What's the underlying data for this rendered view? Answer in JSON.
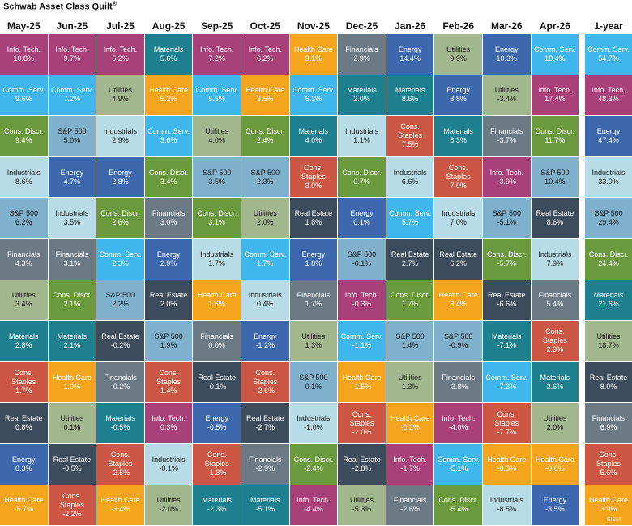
{
  "title": "Schwab Asset Class Quilt",
  "title_mark": "®",
  "watermark": "EISM",
  "colors": {
    "Info. Tech.": "#a8407a",
    "Comm. Serv.": "#3fb7ec",
    "Cons. Discr.": "#6a9a3d",
    "Industrials": "#b7dce8",
    "S&P 500": "#7fb0cc",
    "Financials": "#6c7a86",
    "Utilities": "#a3b78e",
    "Materials": "#1e7f8e",
    "Cons. Staples": "#cc5745",
    "Real Estate": "#3d4c5c",
    "Energy": "#3e68ad",
    "Health Care": "#f4a51d"
  },
  "chart_data": {
    "type": "table",
    "title": "Schwab Asset Class Quilt",
    "columns": [
      {
        "period": "May-25",
        "cells": [
          {
            "sector": "Info. Tech.",
            "value": "10.8%"
          },
          {
            "sector": "Comm. Serv.",
            "value": "9.6%"
          },
          {
            "sector": "Cons. Discr.",
            "value": "9.4%"
          },
          {
            "sector": "Industrials",
            "value": "8.6%"
          },
          {
            "sector": "S&P 500",
            "value": "6.2%"
          },
          {
            "sector": "Financials",
            "value": "4.3%"
          },
          {
            "sector": "Utilities",
            "value": "3.4%"
          },
          {
            "sector": "Materials",
            "value": "2.8%"
          },
          {
            "sector": "Cons. Staples",
            "value": "1.7%"
          },
          {
            "sector": "Real Estate",
            "value": "0.8%"
          },
          {
            "sector": "Energy",
            "value": "0.3%"
          },
          {
            "sector": "Health Care",
            "value": "-5.7%"
          }
        ]
      },
      {
        "period": "Jun-25",
        "cells": [
          {
            "sector": "Info. Tech.",
            "value": "9.7%"
          },
          {
            "sector": "Comm. Serv.",
            "value": "7.2%"
          },
          {
            "sector": "S&P 500",
            "value": "5.0%"
          },
          {
            "sector": "Energy",
            "value": "4.7%"
          },
          {
            "sector": "Industrials",
            "value": "3.5%"
          },
          {
            "sector": "Financials",
            "value": "3.1%"
          },
          {
            "sector": "Cons. Discr.",
            "value": "2.1%"
          },
          {
            "sector": "Materials",
            "value": "2.1%"
          },
          {
            "sector": "Health Care",
            "value": "1.9%"
          },
          {
            "sector": "Utilities",
            "value": "0.1%"
          },
          {
            "sector": "Real Estate",
            "value": "-0.5%"
          },
          {
            "sector": "Cons. Staples",
            "value": "-2.2%"
          }
        ]
      },
      {
        "period": "Jul-25",
        "cells": [
          {
            "sector": "Info. Tech.",
            "value": "5.2%"
          },
          {
            "sector": "Utilities",
            "value": "4.9%"
          },
          {
            "sector": "Industrials",
            "value": "2.9%"
          },
          {
            "sector": "Energy",
            "value": "2.8%"
          },
          {
            "sector": "Cons. Discr.",
            "value": "2.6%"
          },
          {
            "sector": "Comm. Serv.",
            "value": "2.3%"
          },
          {
            "sector": "S&P 500",
            "value": "2.2%"
          },
          {
            "sector": "Real Estate",
            "value": "-0.2%"
          },
          {
            "sector": "Financials",
            "value": "-0.2%"
          },
          {
            "sector": "Materials",
            "value": "-0.5%"
          },
          {
            "sector": "Cons. Staples",
            "value": "-2.5%"
          },
          {
            "sector": "Health Care",
            "value": "-3.4%"
          }
        ]
      },
      {
        "period": "Aug-25",
        "cells": [
          {
            "sector": "Materials",
            "value": "5.6%"
          },
          {
            "sector": "Health Care",
            "value": "5.2%"
          },
          {
            "sector": "Comm. Serv.",
            "value": "3.6%"
          },
          {
            "sector": "Cons. Discr.",
            "value": "3.4%"
          },
          {
            "sector": "Financials",
            "value": "3.0%"
          },
          {
            "sector": "Energy",
            "value": "2.9%"
          },
          {
            "sector": "Real Estate",
            "value": "2.0%"
          },
          {
            "sector": "S&P 500",
            "value": "1.9%"
          },
          {
            "sector": "Cons. Staples",
            "value": "1.4%"
          },
          {
            "sector": "Info. Tech.",
            "value": "0.3%"
          },
          {
            "sector": "Industrials",
            "value": "-0.1%"
          },
          {
            "sector": "Utilities",
            "value": "-2.0%"
          }
        ]
      },
      {
        "period": "Sep-25",
        "cells": [
          {
            "sector": "Info. Tech.",
            "value": "7.2%"
          },
          {
            "sector": "Comm. Serv.",
            "value": "5.5%"
          },
          {
            "sector": "Utilities",
            "value": "4.0%"
          },
          {
            "sector": "S&P 500",
            "value": "3.5%"
          },
          {
            "sector": "Cons. Discr.",
            "value": "3.1%"
          },
          {
            "sector": "Industrials",
            "value": "1.7%"
          },
          {
            "sector": "Health Care",
            "value": "1.6%"
          },
          {
            "sector": "Financials",
            "value": "0.0%"
          },
          {
            "sector": "Real Estate",
            "value": "-0.1%"
          },
          {
            "sector": "Energy",
            "value": "-0.5%"
          },
          {
            "sector": "Cons. Staples",
            "value": "-1.8%"
          },
          {
            "sector": "Materials",
            "value": "-2.3%"
          }
        ]
      },
      {
        "period": "Oct-25",
        "cells": [
          {
            "sector": "Info. Tech.",
            "value": "6.2%"
          },
          {
            "sector": "Health Care",
            "value": "3.5%"
          },
          {
            "sector": "Cons. Discr.",
            "value": "2.4%"
          },
          {
            "sector": "S&P 500",
            "value": "2.3%"
          },
          {
            "sector": "Utilities",
            "value": "2.0%"
          },
          {
            "sector": "Comm. Serv.",
            "value": "1.7%"
          },
          {
            "sector": "Industrials",
            "value": "0.4%"
          },
          {
            "sector": "Energy",
            "value": "-1.2%"
          },
          {
            "sector": "Cons. Staples",
            "value": "-2.6%"
          },
          {
            "sector": "Real Estate",
            "value": "-2.7%"
          },
          {
            "sector": "Financials",
            "value": "-2.9%"
          },
          {
            "sector": "Materials",
            "value": "-5.1%"
          }
        ]
      },
      {
        "period": "Nov-25",
        "cells": [
          {
            "sector": "Health Care",
            "value": "9.1%"
          },
          {
            "sector": "Comm. Serv.",
            "value": "6.3%"
          },
          {
            "sector": "Materials",
            "value": "4.0%"
          },
          {
            "sector": "Cons. Staples",
            "value": "3.9%"
          },
          {
            "sector": "Real Estate",
            "value": "1.8%"
          },
          {
            "sector": "Energy",
            "value": "1.8%"
          },
          {
            "sector": "Financials",
            "value": "1.7%"
          },
          {
            "sector": "Utilities",
            "value": "1.3%"
          },
          {
            "sector": "S&P 500",
            "value": "0.1%"
          },
          {
            "sector": "Industrials",
            "value": "-1.0%"
          },
          {
            "sector": "Cons. Discr.",
            "value": "-2.4%"
          },
          {
            "sector": "Info. Tech.",
            "value": "-4.4%"
          }
        ]
      },
      {
        "period": "Dec-25",
        "cells": [
          {
            "sector": "Financials",
            "value": "2.9%"
          },
          {
            "sector": "Materials",
            "value": "2.0%"
          },
          {
            "sector": "Industrials",
            "value": "1.1%"
          },
          {
            "sector": "Cons. Discr.",
            "value": "0.7%"
          },
          {
            "sector": "Energy",
            "value": "0.1%"
          },
          {
            "sector": "S&P 500",
            "value": "-0.1%"
          },
          {
            "sector": "Info. Tech.",
            "value": "-0.3%"
          },
          {
            "sector": "Comm. Serv.",
            "value": "-1.1%"
          },
          {
            "sector": "Health Care",
            "value": "-1.5%"
          },
          {
            "sector": "Cons. Staples",
            "value": "-2.0%"
          },
          {
            "sector": "Real Estate",
            "value": "-2.8%"
          },
          {
            "sector": "Utilities",
            "value": "-5.3%"
          }
        ]
      },
      {
        "period": "Jan-26",
        "cells": [
          {
            "sector": "Energy",
            "value": "14.4%"
          },
          {
            "sector": "Materials",
            "value": "8.6%"
          },
          {
            "sector": "Cons. Staples",
            "value": "7.5%"
          },
          {
            "sector": "Industrials",
            "value": "6.6%"
          },
          {
            "sector": "Comm. Serv.",
            "value": "5.7%"
          },
          {
            "sector": "Real Estate",
            "value": "2.7%"
          },
          {
            "sector": "Cons. Discr.",
            "value": "1.7%"
          },
          {
            "sector": "S&P 500",
            "value": "1.4%"
          },
          {
            "sector": "Utilities",
            "value": "1.3%"
          },
          {
            "sector": "Health Care",
            "value": "-0.2%"
          },
          {
            "sector": "Info. Tech.",
            "value": "-1.7%"
          },
          {
            "sector": "Financials",
            "value": "-2.6%"
          }
        ]
      },
      {
        "period": "Feb-26",
        "cells": [
          {
            "sector": "Utilities",
            "value": "9.9%"
          },
          {
            "sector": "Energy",
            "value": "8.8%"
          },
          {
            "sector": "Materials",
            "value": "8.3%"
          },
          {
            "sector": "Cons. Staples",
            "value": "7.9%"
          },
          {
            "sector": "Industrials",
            "value": "7.0%"
          },
          {
            "sector": "Real Estate",
            "value": "6.2%"
          },
          {
            "sector": "Health Care",
            "value": "3.4%"
          },
          {
            "sector": "S&P 500",
            "value": "-0.9%"
          },
          {
            "sector": "Financials",
            "value": "-3.8%"
          },
          {
            "sector": "Info. Tech.",
            "value": "-4.0%"
          },
          {
            "sector": "Comm. Serv.",
            "value": "-5.1%"
          },
          {
            "sector": "Cons. Discr.",
            "value": "-5.4%"
          }
        ]
      },
      {
        "period": "Mar-26",
        "cells": [
          {
            "sector": "Energy",
            "value": "10.3%"
          },
          {
            "sector": "Utilities",
            "value": "-3.4%"
          },
          {
            "sector": "Financials",
            "value": "-3.7%"
          },
          {
            "sector": "Info. Tech.",
            "value": "-3.9%"
          },
          {
            "sector": "S&P 500",
            "value": "-5.1%"
          },
          {
            "sector": "Cons. Discr.",
            "value": "-5.7%"
          },
          {
            "sector": "Real Estate",
            "value": "-6.6%"
          },
          {
            "sector": "Materials",
            "value": "-7.1%"
          },
          {
            "sector": "Comm. Serv.",
            "value": "-7.3%"
          },
          {
            "sector": "Cons. Staples",
            "value": "-7.7%"
          },
          {
            "sector": "Health Care",
            "value": "-8.3%"
          },
          {
            "sector": "Industrials",
            "value": "-8.5%"
          }
        ]
      },
      {
        "period": "Apr-26",
        "cells": [
          {
            "sector": "Comm. Serv.",
            "value": "18.4%"
          },
          {
            "sector": "Info. Tech.",
            "value": "17.4%"
          },
          {
            "sector": "Cons. Discr.",
            "value": "11.7%"
          },
          {
            "sector": "S&P 500",
            "value": "10.4%"
          },
          {
            "sector": "Real Estate",
            "value": "8.6%"
          },
          {
            "sector": "Industrials",
            "value": "7.9%"
          },
          {
            "sector": "Financials",
            "value": "5.4%"
          },
          {
            "sector": "Cons. Staples",
            "value": "2.9%"
          },
          {
            "sector": "Materials",
            "value": "2.6%"
          },
          {
            "sector": "Utilities",
            "value": "2.0%"
          },
          {
            "sector": "Health Care",
            "value": "-0.6%"
          },
          {
            "sector": "Energy",
            "value": "-3.5%"
          }
        ]
      },
      {
        "period": "1-year",
        "cells": [
          {
            "sector": "Comm. Serv.",
            "value": "54.7%"
          },
          {
            "sector": "Info. Tech.",
            "value": "48.3%"
          },
          {
            "sector": "Energy",
            "value": "47.4%"
          },
          {
            "sector": "Industrials",
            "value": "33.0%"
          },
          {
            "sector": "S&P 500",
            "value": "29.4%"
          },
          {
            "sector": "Cons. Discr.",
            "value": "24.4%"
          },
          {
            "sector": "Materials",
            "value": "21.6%"
          },
          {
            "sector": "Utilities",
            "value": "18.7%"
          },
          {
            "sector": "Real Estate",
            "value": "8.9%"
          },
          {
            "sector": "Financials",
            "value": "6.9%"
          },
          {
            "sector": "Cons. Staples",
            "value": "5.6%"
          },
          {
            "sector": "Health Care",
            "value": "3.9%"
          }
        ]
      }
    ]
  }
}
